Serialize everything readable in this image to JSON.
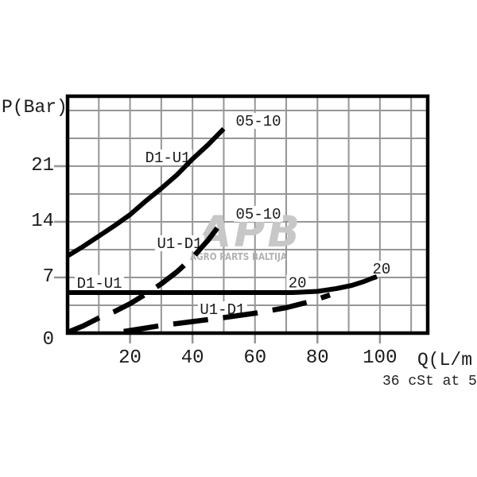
{
  "chart_data": {
    "type": "line",
    "title": "",
    "xlabel": "Q(L/m",
    "ylabel": "P(Bar)",
    "footnote": "36 cSt at 5",
    "xlim": [
      0,
      115.3
    ],
    "ylim": [
      0,
      29.8
    ],
    "x_ticks": [
      20,
      40,
      60,
      80,
      100
    ],
    "y_ticks": [
      0,
      7,
      14,
      21
    ],
    "x_grid_step": 10,
    "y_grid_step": 3.5,
    "grid": true,
    "legend_position": "inline-annotations",
    "series": [
      {
        "id": "d1-u1-05-10",
        "name": "D1-U1 (size 05-10)",
        "direction": "D1-U1",
        "size": "05-10",
        "style": "solid",
        "points": [
          [
            0,
            9.7
          ],
          [
            5,
            10.9
          ],
          [
            10,
            12.2
          ],
          [
            15,
            13.5
          ],
          [
            20,
            14.9
          ],
          [
            25,
            16.6
          ],
          [
            30,
            18.2
          ],
          [
            35,
            19.9
          ],
          [
            40,
            21.9
          ],
          [
            45,
            23.7
          ],
          [
            50,
            25.7
          ]
        ]
      },
      {
        "id": "u1-d1-05-10",
        "name": "U1-D1 (size 05-10)",
        "direction": "U1-D1",
        "size": "05-10",
        "style": "dashed",
        "points": [
          [
            0,
            0.1
          ],
          [
            5,
            0.9
          ],
          [
            10,
            1.9
          ],
          [
            15,
            2.7
          ],
          [
            20,
            3.7
          ],
          [
            25,
            4.9
          ],
          [
            30,
            6.2
          ],
          [
            35,
            7.7
          ],
          [
            40,
            9.5
          ],
          [
            45,
            11.7
          ],
          [
            50,
            14.3
          ]
        ]
      },
      {
        "id": "d1-u1-20",
        "name": "D1-U1 (size 20)",
        "direction": "D1-U1",
        "size": "20",
        "style": "solid",
        "points": [
          [
            0,
            5.1
          ],
          [
            60,
            5.1
          ],
          [
            72,
            5.1
          ],
          [
            80,
            5.25
          ],
          [
            86,
            5.6
          ],
          [
            91,
            6.0
          ],
          [
            95,
            6.5
          ],
          [
            97.5,
            6.9
          ],
          [
            99,
            7.1
          ]
        ]
      },
      {
        "id": "u1-d1-20",
        "name": "U1-D1 (size 20)",
        "direction": "U1-D1",
        "size": "20",
        "style": "dashed",
        "points": [
          [
            18,
            0.2
          ],
          [
            30,
            0.95
          ],
          [
            40,
            1.45
          ],
          [
            50,
            1.95
          ],
          [
            60,
            2.5
          ],
          [
            70,
            3.2
          ],
          [
            78,
            4.0
          ],
          [
            84,
            4.8
          ]
        ]
      }
    ],
    "annotations": [
      {
        "text": "05-10",
        "q": 61.1,
        "p": 26.7
      },
      {
        "text": "D1-U1",
        "q": 32.1,
        "p": 22.1
      },
      {
        "text": "05-10",
        "q": 61.1,
        "p": 15.0
      },
      {
        "text": "U1-D1",
        "q": 35.9,
        "p": 11.3
      },
      {
        "text": "D1-U1",
        "q": 10.2,
        "p": 6.3
      },
      {
        "text": "20",
        "q": 73.6,
        "p": 6.35
      },
      {
        "text": "U1-D1",
        "q": 49.6,
        "p": 3.0
      },
      {
        "text": "20",
        "q": 100.5,
        "p": 8.1
      }
    ]
  },
  "watermark": {
    "logo": "APB",
    "subtitle": "AGRO PARTS BALTIJA"
  },
  "colors": {
    "background": "#ffffff",
    "curve": "#000000",
    "frame": "#000000",
    "grid": "#969696",
    "tick": "#969696",
    "text": "#1a1a1a",
    "watermark_logo": "#c7c7c7",
    "watermark_subtitle": "#b2b2b2"
  }
}
